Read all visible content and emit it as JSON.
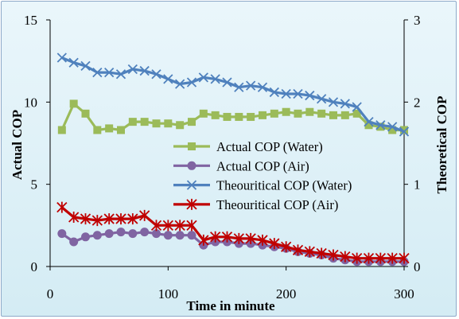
{
  "chart_data": {
    "type": "line",
    "xlabel": "Time in minute",
    "ylabel_left": "Actual COP",
    "ylabel_right": "Theoretical COP",
    "xlim": [
      0,
      300
    ],
    "x_ticks": [
      "0",
      "100",
      "200",
      "300"
    ],
    "ylim_left": [
      0,
      15
    ],
    "y_ticks_left": [
      "0",
      "5",
      "10",
      "15"
    ],
    "ylim_right": [
      0,
      3
    ],
    "y_ticks_right": [
      "0",
      "1",
      "2",
      "3"
    ],
    "grid": false,
    "legend_position": "center-right",
    "x": [
      10,
      20,
      30,
      40,
      50,
      60,
      70,
      80,
      90,
      100,
      110,
      120,
      130,
      140,
      150,
      160,
      170,
      180,
      190,
      200,
      210,
      220,
      230,
      240,
      250,
      260,
      270,
      280,
      290,
      300
    ],
    "series": [
      {
        "name": "Actual COP (Water)",
        "axis": "left",
        "color": "#9bbb59",
        "marker": "square",
        "values": [
          8.3,
          9.9,
          9.3,
          8.3,
          8.4,
          8.3,
          8.8,
          8.8,
          8.7,
          8.7,
          8.6,
          8.8,
          9.3,
          9.2,
          9.1,
          9.1,
          9.1,
          9.2,
          9.3,
          9.4,
          9.3,
          9.4,
          9.3,
          9.2,
          9.2,
          9.3,
          8.6,
          8.5,
          8.3,
          8.3
        ]
      },
      {
        "name": "Actual COP (Air)",
        "axis": "left",
        "color": "#8064a2",
        "marker": "circle",
        "values": [
          2.0,
          1.5,
          1.8,
          1.9,
          2.0,
          2.1,
          2.0,
          2.1,
          2.0,
          1.9,
          1.9,
          1.9,
          1.3,
          1.5,
          1.5,
          1.4,
          1.4,
          1.3,
          1.2,
          1.1,
          0.9,
          0.8,
          0.7,
          0.5,
          0.4,
          0.3,
          0.3,
          0.3,
          0.3,
          0.3
        ]
      },
      {
        "name": "Theouritical COP (Water)",
        "axis": "right",
        "color": "#4f81bd",
        "marker": "x",
        "values": [
          2.54,
          2.48,
          2.44,
          2.36,
          2.36,
          2.34,
          2.4,
          2.38,
          2.34,
          2.28,
          2.22,
          2.24,
          2.3,
          2.28,
          2.24,
          2.18,
          2.2,
          2.18,
          2.12,
          2.1,
          2.1,
          2.08,
          2.04,
          2.0,
          1.98,
          1.94,
          1.76,
          1.72,
          1.7,
          1.64
        ]
      },
      {
        "name": "Theouritical COP (Air)",
        "axis": "right",
        "color": "#c00000",
        "marker": "star",
        "values": [
          0.72,
          0.6,
          0.58,
          0.56,
          0.58,
          0.58,
          0.58,
          0.62,
          0.5,
          0.5,
          0.5,
          0.5,
          0.32,
          0.36,
          0.36,
          0.34,
          0.34,
          0.32,
          0.28,
          0.24,
          0.2,
          0.18,
          0.16,
          0.14,
          0.12,
          0.1,
          0.1,
          0.1,
          0.1,
          0.1
        ]
      }
    ]
  }
}
